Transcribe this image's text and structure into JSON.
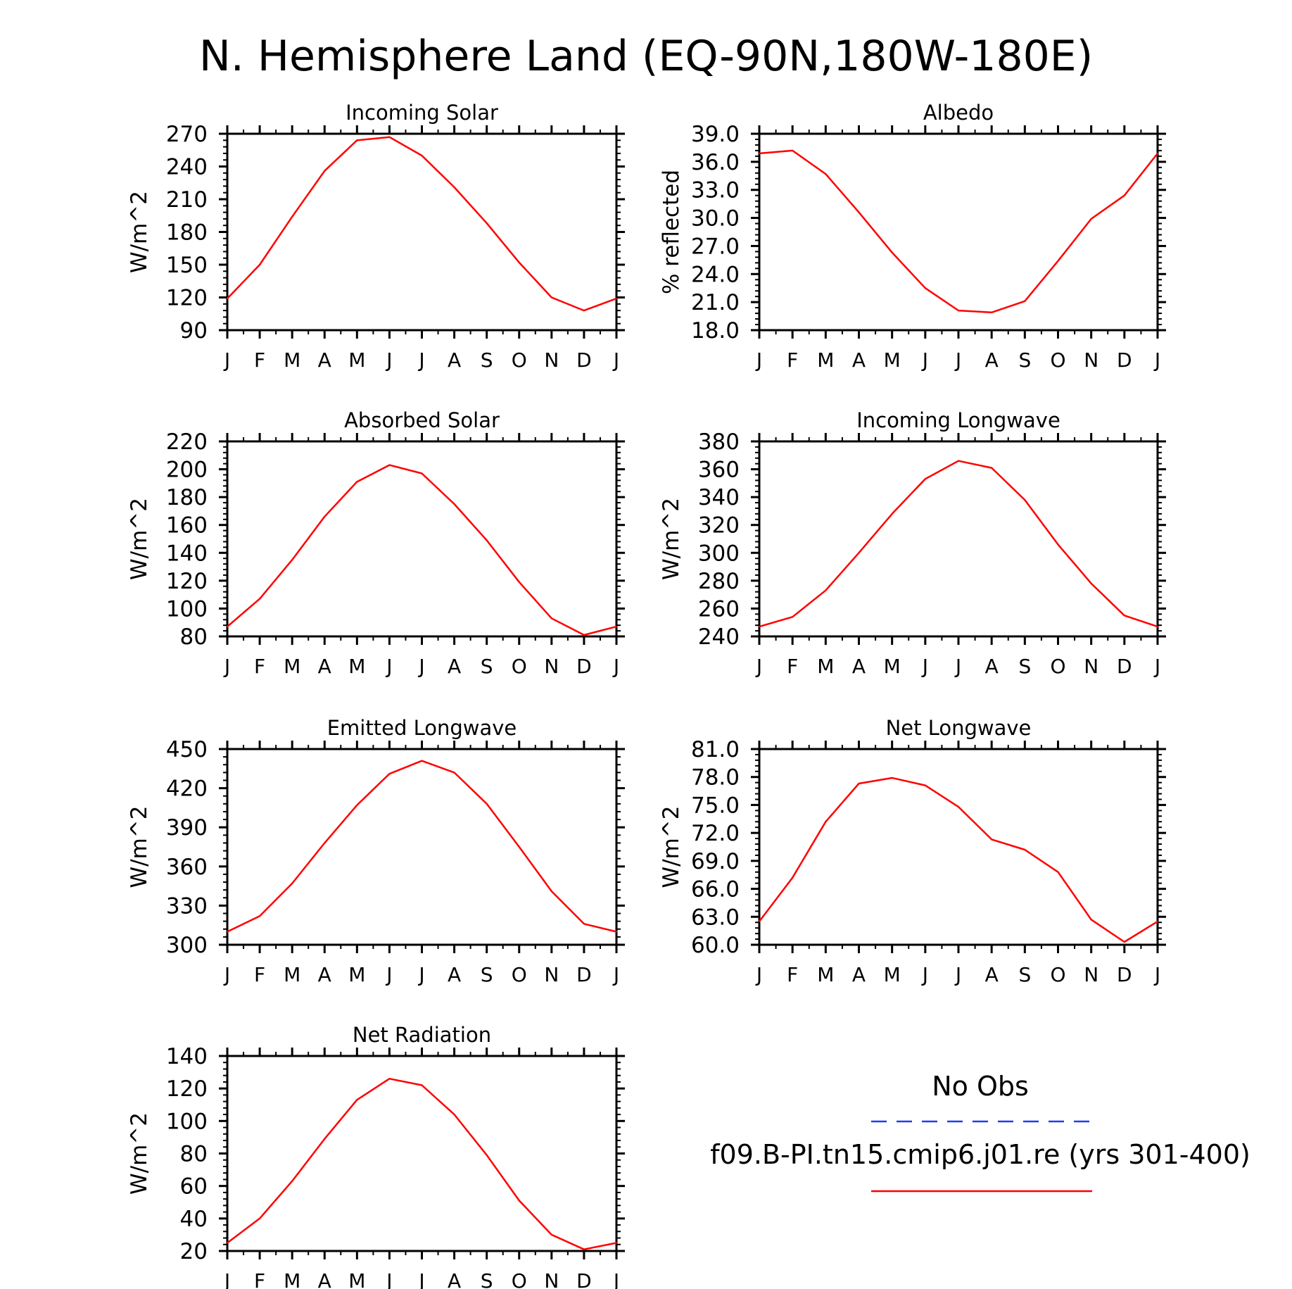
{
  "page_title": "N. Hemisphere Land (EQ-90N,180W-180E)",
  "months": [
    "J",
    "F",
    "M",
    "A",
    "M",
    "J",
    "J",
    "A",
    "S",
    "O",
    "N",
    "D",
    "J"
  ],
  "legend": {
    "obs_label": "No Obs",
    "obs_color": "#1f3ff0",
    "model_label": "f09.B-PI.tn15.cmip6.j01.re (yrs 301-400)",
    "model_color": "#ff0000"
  },
  "chart_data": [
    {
      "type": "line",
      "title": "Incoming Solar",
      "ylabel": "W/m^2",
      "ylim": [
        90,
        270
      ],
      "yticks": [
        90,
        120,
        150,
        180,
        210,
        240,
        270
      ],
      "ytick_labels": [
        "90",
        "120",
        "150",
        "180",
        "210",
        "240",
        "270"
      ],
      "series": [
        {
          "values": [
            119,
            150,
            194,
            236,
            264,
            267,
            250,
            221,
            188,
            152,
            120,
            108,
            119
          ]
        }
      ]
    },
    {
      "type": "line",
      "title": "Albedo",
      "ylabel": "% reflected",
      "ylim": [
        18,
        39
      ],
      "yticks": [
        18,
        21,
        24,
        27,
        30,
        33,
        36,
        39
      ],
      "ytick_labels": [
        "18.0",
        "21.0",
        "24.0",
        "27.0",
        "30.0",
        "33.0",
        "36.0",
        "39.0"
      ],
      "series": [
        {
          "values": [
            36.9,
            37.2,
            34.7,
            30.6,
            26.3,
            22.5,
            20.1,
            19.9,
            21.1,
            25.4,
            29.9,
            32.4,
            36.9
          ]
        }
      ]
    },
    {
      "type": "line",
      "title": "Absorbed Solar",
      "ylabel": "W/m^2",
      "ylim": [
        80,
        220
      ],
      "yticks": [
        80,
        100,
        120,
        140,
        160,
        180,
        200,
        220
      ],
      "ytick_labels": [
        "80",
        "100",
        "120",
        "140",
        "160",
        "180",
        "200",
        "220"
      ],
      "series": [
        {
          "values": [
            87,
            107,
            135,
            166,
            191,
            203,
            197,
            175,
            149,
            119,
            93,
            81,
            87
          ]
        }
      ]
    },
    {
      "type": "line",
      "title": "Incoming Longwave",
      "ylabel": "W/m^2",
      "ylim": [
        240,
        380
      ],
      "yticks": [
        240,
        260,
        280,
        300,
        320,
        340,
        360,
        380
      ],
      "ytick_labels": [
        "240",
        "260",
        "280",
        "300",
        "320",
        "340",
        "360",
        "380"
      ],
      "series": [
        {
          "values": [
            247,
            254,
            273,
            300,
            328,
            353,
            366,
            361,
            338,
            306,
            278,
            255,
            247
          ]
        }
      ]
    },
    {
      "type": "line",
      "title": "Emitted Longwave",
      "ylabel": "W/m^2",
      "ylim": [
        300,
        450
      ],
      "yticks": [
        300,
        330,
        360,
        390,
        420,
        450
      ],
      "ytick_labels": [
        "300",
        "330",
        "360",
        "390",
        "420",
        "450"
      ],
      "series": [
        {
          "values": [
            310,
            322,
            347,
            378,
            407,
            431,
            441,
            432,
            408,
            375,
            341,
            316,
            310
          ]
        }
      ]
    },
    {
      "type": "line",
      "title": "Net Longwave",
      "ylabel": "W/m^2",
      "ylim": [
        60,
        81
      ],
      "yticks": [
        60,
        63,
        66,
        69,
        72,
        75,
        78,
        81
      ],
      "ytick_labels": [
        "60.0",
        "63.0",
        "66.0",
        "69.0",
        "72.0",
        "75.0",
        "78.0",
        "81.0"
      ],
      "series": [
        {
          "values": [
            62.5,
            67.2,
            73.2,
            77.3,
            77.9,
            77.1,
            74.8,
            71.3,
            70.2,
            67.8,
            62.7,
            60.3,
            62.5
          ]
        }
      ]
    },
    {
      "type": "line",
      "title": "Net Radiation",
      "ylabel": "W/m^2",
      "ylim": [
        20,
        140
      ],
      "yticks": [
        20,
        40,
        60,
        80,
        100,
        120,
        140
      ],
      "ytick_labels": [
        "20",
        "40",
        "60",
        "80",
        "100",
        "120",
        "140"
      ],
      "series": [
        {
          "values": [
            25,
            40,
            63,
            89,
            113,
            126,
            122,
            104,
            79,
            51,
            30,
            21,
            25
          ]
        }
      ]
    }
  ]
}
